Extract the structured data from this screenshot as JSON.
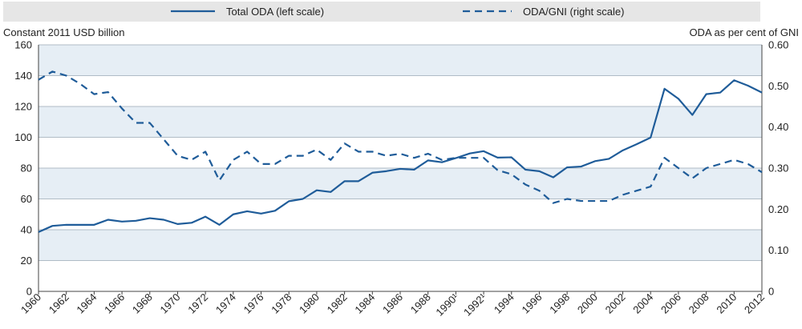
{
  "chart_data": {
    "type": "line",
    "xlabel": "",
    "ylabel_left": "Constant 2011 USD billion",
    "ylabel_right": "ODA as per cent of GNI",
    "ylim_left": [
      0,
      160
    ],
    "ylim_right": [
      0,
      0.6
    ],
    "yticks_left": [
      "0",
      "20",
      "40",
      "60",
      "80",
      "100",
      "120",
      "140",
      "160"
    ],
    "yticks_right": [
      "0",
      "0.10",
      "0.20",
      "0.30",
      "0.40",
      "0.50",
      "0.60"
    ],
    "x": [
      1960,
      1961,
      1962,
      1963,
      1964,
      1965,
      1966,
      1967,
      1968,
      1969,
      1970,
      1971,
      1972,
      1973,
      1974,
      1975,
      1976,
      1977,
      1978,
      1979,
      1980,
      1981,
      1982,
      1983,
      1984,
      1985,
      1986,
      1987,
      1988,
      1989,
      1990,
      1991,
      1992,
      1993,
      1994,
      1995,
      1996,
      1997,
      1998,
      1999,
      2000,
      2001,
      2002,
      2003,
      2004,
      2005,
      2006,
      2007,
      2008,
      2009,
      2010,
      2011,
      2012
    ],
    "xtick_labels": [
      "1960",
      "1962",
      "1964",
      "1966",
      "1968",
      "1970",
      "1972",
      "1974",
      "1976",
      "1978",
      "1980",
      "1982",
      "1984",
      "1986",
      "1988",
      "1990¹",
      "1992¹",
      "1994",
      "1996",
      "1998",
      "2000",
      "2002",
      "2004",
      "2006",
      "2008",
      "2010",
      "2012"
    ],
    "grid": true,
    "legend_position": "top",
    "colors": {
      "line": "#1f5c99",
      "grid_band": "#e6eef5",
      "grid_line": "#9aa8b5",
      "legend_bg": "#e6e6e6"
    },
    "series": [
      {
        "name": "Total ODA (left scale)",
        "axis": "left",
        "style": "solid",
        "values": [
          38.5,
          42.5,
          43.2,
          43.2,
          43.2,
          46.5,
          45.3,
          45.8,
          47.5,
          46.5,
          43.7,
          44.5,
          48.5,
          43.2,
          50.0,
          52.0,
          50.5,
          52.3,
          58.5,
          60.0,
          65.6,
          64.5,
          71.5,
          71.5,
          77.0,
          78.0,
          79.5,
          79.0,
          85.0,
          83.8,
          86.5,
          89.5,
          91.0,
          86.8,
          87.0,
          79.0,
          78.0,
          74.0,
          80.5,
          81.0,
          84.5,
          86.0,
          91.5,
          95.5,
          99.8,
          131.5,
          125.0,
          114.5,
          128.0,
          129.0,
          137.0,
          133.5,
          129.0
        ]
      },
      {
        "name": "ODA/GNI (right scale)",
        "axis": "right",
        "style": "dashed",
        "values": [
          0.515,
          0.535,
          0.525,
          0.505,
          0.48,
          0.485,
          0.445,
          0.41,
          0.41,
          0.37,
          0.33,
          0.32,
          0.34,
          0.27,
          0.32,
          0.34,
          0.31,
          0.31,
          0.33,
          0.33,
          0.345,
          0.32,
          0.36,
          0.34,
          0.34,
          0.33,
          0.335,
          0.325,
          0.335,
          0.32,
          0.325,
          0.325,
          0.325,
          0.295,
          0.285,
          0.26,
          0.245,
          0.215,
          0.225,
          0.22,
          0.22,
          0.22,
          0.235,
          0.245,
          0.255,
          0.325,
          0.3,
          0.275,
          0.3,
          0.31,
          0.32,
          0.31,
          0.29
        ]
      }
    ]
  }
}
